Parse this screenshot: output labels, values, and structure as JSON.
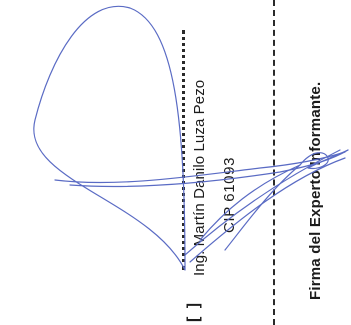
{
  "signature_block": {
    "expert_name": "Ing. Martín Danilo Luza Pezo",
    "cip": "CIP 61093",
    "caption": "Firma del Experto Informante.",
    "bracket_mark": "[ ]"
  },
  "colors": {
    "text": "#1c1c1c",
    "signature_ink": "#5a6bc4",
    "rule": "#2a2a2a"
  }
}
